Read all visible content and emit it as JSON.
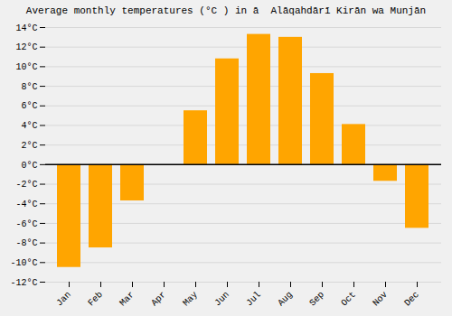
{
  "chart_data": {
    "type": "bar",
    "title": "Average monthly temperatures (°C ) in ā  Alāqahdārī Kirān wa Munjān",
    "categories": [
      "Jan",
      "Feb",
      "Mar",
      "Apr",
      "May",
      "Jun",
      "Jul",
      "Aug",
      "Sep",
      "Oct",
      "Nov",
      "Dec"
    ],
    "values": [
      -10.5,
      -8.5,
      -3.7,
      0.0,
      5.5,
      10.8,
      13.3,
      13.0,
      9.3,
      4.1,
      -1.7,
      -6.5
    ],
    "color": "#FFA500",
    "ylim": [
      -12,
      14
    ],
    "yticks": [
      {
        "value": -12,
        "label": "-12°C"
      },
      {
        "value": -10,
        "label": "-10°C"
      },
      {
        "value": -8,
        "label": "-8°C"
      },
      {
        "value": -6,
        "label": "-6°C"
      },
      {
        "value": -4,
        "label": "-4°C"
      },
      {
        "value": -2,
        "label": "-2°C"
      },
      {
        "value": 0,
        "label": "0°C"
      },
      {
        "value": 2,
        "label": "2°C"
      },
      {
        "value": 4,
        "label": "4°C"
      },
      {
        "value": 6,
        "label": "6°C"
      },
      {
        "value": 8,
        "label": "8°C"
      },
      {
        "value": 10,
        "label": "10°C"
      },
      {
        "value": 12,
        "label": "12°C"
      },
      {
        "value": 14,
        "label": "14°C"
      }
    ],
    "grid": true
  }
}
